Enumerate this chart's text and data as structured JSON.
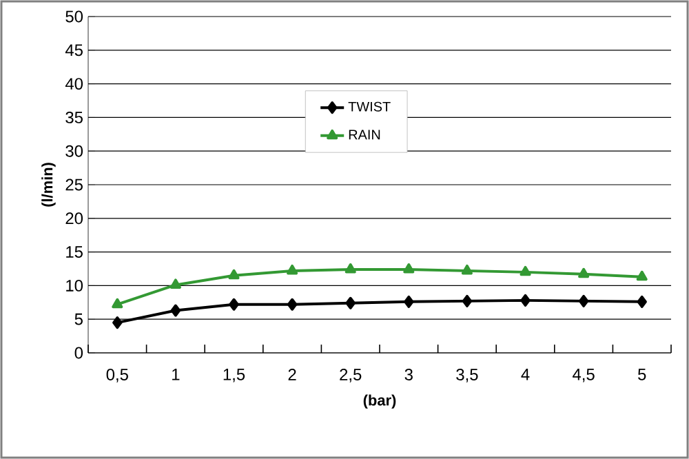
{
  "chart_data": {
    "type": "line",
    "xlabel": "(bar)",
    "ylabel": "(l/min)",
    "categories": [
      "0,5",
      "1",
      "1,5",
      "2",
      "2,5",
      "3",
      "3,5",
      "4",
      "4,5",
      "5"
    ],
    "series": [
      {
        "name": "TWIST",
        "color": "#000000",
        "marker": "diamond",
        "values": [
          4.5,
          6.3,
          7.2,
          7.2,
          7.4,
          7.6,
          7.7,
          7.8,
          7.7,
          7.6
        ]
      },
      {
        "name": "RAIN",
        "color": "#339933",
        "marker": "triangle",
        "values": [
          7.2,
          10.1,
          11.5,
          12.2,
          12.4,
          12.4,
          12.2,
          12.0,
          11.7,
          11.3
        ]
      }
    ],
    "ylim": [
      0,
      50
    ],
    "yticks": [
      0,
      5,
      10,
      15,
      20,
      25,
      30,
      35,
      40,
      45,
      50
    ],
    "grid": "y",
    "legend": "top"
  }
}
